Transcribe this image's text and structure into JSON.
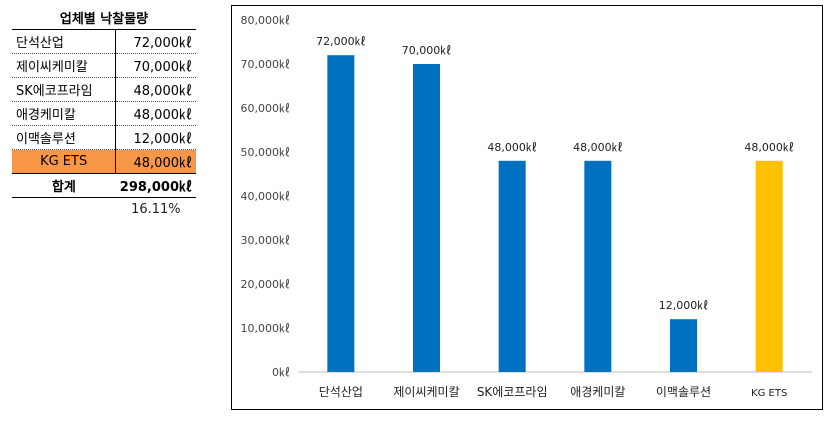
{
  "table": {
    "title": "업체별 낙찰물량",
    "rows": [
      {
        "name": "단석산업",
        "value": "72,000㎘"
      },
      {
        "name": "제이씨케미칼",
        "value": "70,000㎘"
      },
      {
        "name": "SK에코프라임",
        "value": "48,000㎘"
      },
      {
        "name": "애경케미칼",
        "value": "48,000㎘"
      },
      {
        "name": "이맥솔루션",
        "value": "12,000㎘"
      },
      {
        "name": "KG ETS",
        "value": "48,000㎘"
      }
    ],
    "total_label": "합계",
    "total_value": "298,000㎘",
    "share": "16.11%",
    "highlight_color": "#f79646"
  },
  "chart_data": {
    "type": "bar",
    "categories": [
      "단석산업",
      "제이씨케미칼",
      "SK에코프라임",
      "애경케미칼",
      "이맥솔루션",
      "KG ETS"
    ],
    "values": [
      72000,
      70000,
      48000,
      48000,
      12000,
      48000
    ],
    "data_labels": [
      "72,000㎘",
      "70,000㎘",
      "48,000㎘",
      "48,000㎘",
      "12,000㎘",
      "48,000㎘"
    ],
    "ytick_values": [
      0,
      10000,
      20000,
      30000,
      40000,
      50000,
      60000,
      70000,
      80000
    ],
    "ytick_labels": [
      "0㎘",
      "10,000㎘",
      "20,000㎘",
      "30,000㎘",
      "40,000㎘",
      "50,000㎘",
      "60,000㎘",
      "70,000㎘",
      "80,000㎘"
    ],
    "ylim": [
      0,
      80000
    ],
    "grid": false,
    "colors": [
      "#0070c0",
      "#0070c0",
      "#0070c0",
      "#0070c0",
      "#0070c0",
      "#ffc000"
    ]
  }
}
